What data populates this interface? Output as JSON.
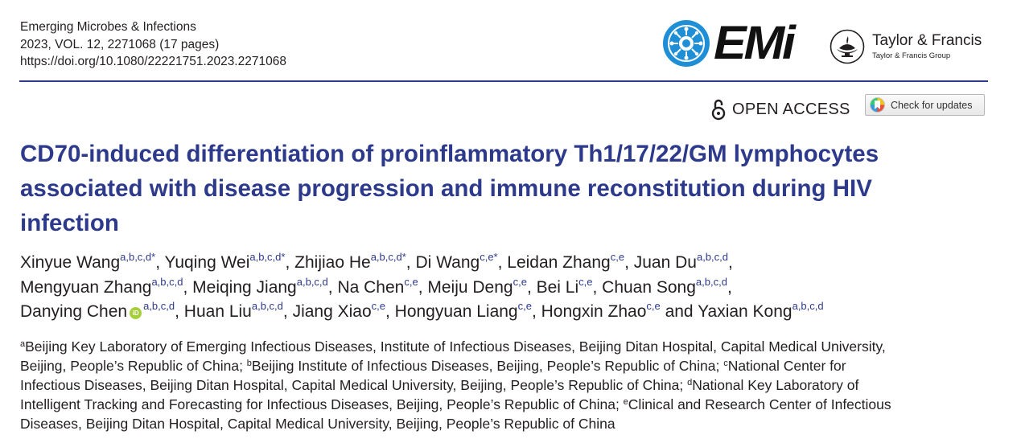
{
  "journal": {
    "name": "Emerging Microbes & Infections",
    "volume_line": "2023, VOL. 12, 2271068 (17 pages)",
    "doi": "https://doi.org/10.1080/22221751.2023.2271068"
  },
  "logos": {
    "emi_text": "EMi",
    "publisher_name": "Taylor & Francis",
    "publisher_group": "Taylor & Francis Group"
  },
  "open_access": "OPEN ACCESS",
  "check_updates": "Check for updates",
  "title_lines": [
    "CD70-induced differentiation of proinflammatory Th1/17/22/GM lymphocytes",
    "associated with disease progression and immune reconstitution during HIV",
    "infection"
  ],
  "authors": [
    [
      {
        "name": "Xinyue Wang",
        "sup": "a,b,c,d",
        "star": true,
        "sep": ", "
      },
      {
        "name": "Yuqing Wei",
        "sup": "a,b,c,d",
        "star": true,
        "sep": ", "
      },
      {
        "name": "Zhijiao He",
        "sup": "a,b,c,d",
        "star": true,
        "sep": ", "
      },
      {
        "name": "Di Wang",
        "sup": "c,e",
        "star": true,
        "sep": ", "
      },
      {
        "name": "Leidan Zhang",
        "sup": "c,e",
        "star": false,
        "sep": ", "
      },
      {
        "name": "Juan Du",
        "sup": "a,b,c,d",
        "star": false,
        "sep": ","
      }
    ],
    [
      {
        "name": "Mengyuan Zhang",
        "sup": "a,b,c,d",
        "star": false,
        "sep": ", "
      },
      {
        "name": "Meiqing Jiang",
        "sup": "a,b,c,d",
        "star": false,
        "sep": ", "
      },
      {
        "name": "Na Chen",
        "sup": "c,e",
        "star": false,
        "sep": ", "
      },
      {
        "name": "Meiju Deng",
        "sup": "c,e",
        "star": false,
        "sep": ", "
      },
      {
        "name": "Bei Li",
        "sup": "c,e",
        "star": false,
        "sep": ", "
      },
      {
        "name": "Chuan Song",
        "sup": "a,b,c,d",
        "star": false,
        "sep": ","
      }
    ],
    [
      {
        "name": "Danying Chen",
        "sup": "a,b,c,d",
        "star": false,
        "orcid": true,
        "sep": ", "
      },
      {
        "name": "Huan Liu",
        "sup": "a,b,c,d",
        "star": false,
        "sep": ", "
      },
      {
        "name": "Jiang Xiao",
        "sup": "c,e",
        "star": false,
        "sep": ", "
      },
      {
        "name": "Hongyuan Liang",
        "sup": "c,e",
        "star": false,
        "sep": ", "
      },
      {
        "name": "Hongxin Zhao",
        "sup": "c,e",
        "star": false,
        "sep": " and "
      },
      {
        "name": "Yaxian Kong",
        "sup": "a,b,c,d",
        "star": false,
        "sep": ""
      }
    ]
  ],
  "affiliation_lines": [
    [
      {
        "sup": "a",
        "text": "Beijing Key Laboratory of Emerging Infectious Diseases, Institute of Infectious Diseases, Beijing Ditan Hospital, Capital Medical University,"
      }
    ],
    [
      {
        "sup": "",
        "text": "Beijing, People’s Republic of China; "
      },
      {
        "sup": "b",
        "text": "Beijing Institute of Infectious Diseases, Beijing, People’s Republic of China; "
      },
      {
        "sup": "c",
        "text": "National Center for"
      }
    ],
    [
      {
        "sup": "",
        "text": "Infectious Diseases, Beijing Ditan Hospital, Capital Medical University, Beijing, People’s Republic of China; "
      },
      {
        "sup": "d",
        "text": "National Key Laboratory of"
      }
    ],
    [
      {
        "sup": "",
        "text": "Intelligent Tracking and Forecasting for Infectious Diseases, Beijing, People’s Republic of China; "
      },
      {
        "sup": "e",
        "text": "Clinical and Research Center of Infectious"
      }
    ],
    [
      {
        "sup": "",
        "text": "Diseases, Beijing Ditan Hospital, Capital Medical University, Beijing, People’s Republic of China"
      }
    ]
  ],
  "colors": {
    "title": "#2d3a8c",
    "rule": "#2d3a8c",
    "emi_blue": "#1e8fd6",
    "orcid": "#a6ce39"
  },
  "icons": [
    "emi-logo-icon",
    "taylor-francis-lamp-icon",
    "open-access-lock-icon",
    "check-updates-icon",
    "orcid-icon"
  ]
}
